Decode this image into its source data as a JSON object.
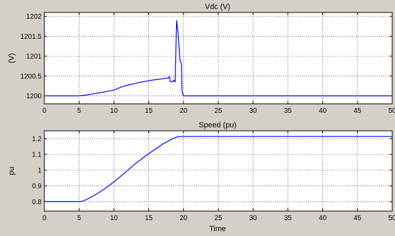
{
  "chart_data": [
    {
      "type": "line",
      "title": "Vdc (V)",
      "xlabel": "",
      "ylabel": "(V)",
      "xlim": [
        0,
        50
      ],
      "ylim": [
        1199.8,
        1202.1
      ],
      "xticks": [
        0,
        5,
        10,
        15,
        20,
        25,
        30,
        35,
        40,
        45,
        50
      ],
      "yticks": [
        1200,
        1200.5,
        1201,
        1201.5,
        1202
      ],
      "ytick_labels": [
        "1200",
        "1200.5",
        "1201",
        "1201.5",
        "1202"
      ],
      "grid": true,
      "series": [
        {
          "color": "#0000ff",
          "x": [
            0,
            5,
            6,
            7,
            8,
            9,
            10,
            10.5,
            11,
            12,
            13,
            14,
            15,
            16,
            17,
            17.8,
            18.0,
            18.05,
            18.5,
            18.6,
            18.8,
            19.0,
            19.2,
            19.5,
            19.7,
            19.8,
            20,
            21,
            50
          ],
          "y": [
            1200,
            1200,
            1200.02,
            1200.05,
            1200.08,
            1200.11,
            1200.15,
            1200.18,
            1200.22,
            1200.27,
            1200.31,
            1200.35,
            1200.38,
            1200.41,
            1200.43,
            1200.45,
            1200.49,
            1200.36,
            1200.36,
            1200.4,
            1200.35,
            1201.9,
            1201.6,
            1200.9,
            1200.8,
            1200.1,
            1200.0,
            1200,
            1200
          ]
        }
      ]
    },
    {
      "type": "line",
      "title": "Speed (pu)",
      "xlabel": "Time",
      "ylabel": "pu",
      "xlim": [
        0,
        50
      ],
      "ylim": [
        0.74,
        1.25
      ],
      "xticks": [
        0,
        5,
        10,
        15,
        20,
        25,
        30,
        35,
        40,
        45,
        50
      ],
      "yticks": [
        0.8,
        0.9,
        1.0,
        1.1,
        1.2
      ],
      "ytick_labels": [
        "0.8",
        "0.9",
        "1",
        "1.1",
        "1.2"
      ],
      "grid": true,
      "series": [
        {
          "color": "#0000ff",
          "x": [
            0,
            5,
            5.5,
            6,
            7,
            8,
            9,
            10,
            11,
            12,
            13,
            14,
            15,
            16,
            17,
            18,
            19,
            19.5,
            20,
            50
          ],
          "y": [
            0.8,
            0.8,
            0.803,
            0.812,
            0.835,
            0.862,
            0.892,
            0.925,
            0.962,
            1.0,
            1.038,
            1.072,
            1.105,
            1.135,
            1.165,
            1.19,
            1.21,
            1.214,
            1.214,
            1.214
          ]
        }
      ]
    }
  ]
}
